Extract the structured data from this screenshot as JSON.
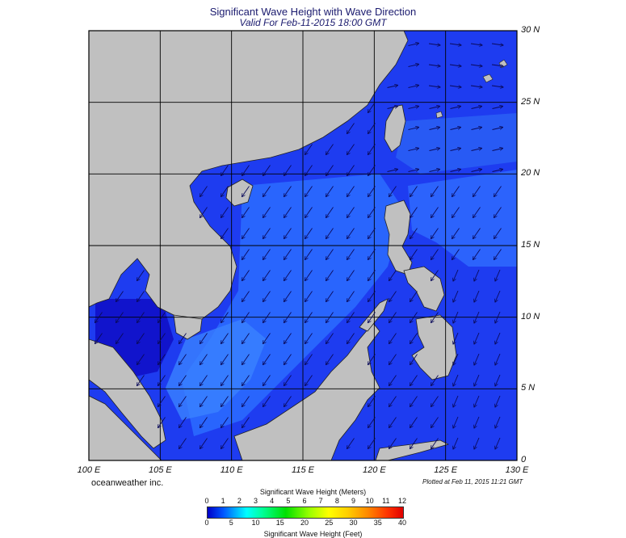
{
  "header": {
    "title": "Significant Wave Height with Wave Direction",
    "subtitle": "Valid For Feb-11-2015 18:00 GMT"
  },
  "map": {
    "lon_labels": [
      "100 E",
      "105 E",
      "110 E",
      "115 E",
      "120 E",
      "125 E",
      "130 E"
    ],
    "lat_labels": [
      "30 N",
      "25 N",
      "20 N",
      "15 N",
      "10 N",
      "5 N",
      "0"
    ],
    "lon_range": [
      100,
      130
    ],
    "lat_range": [
      0,
      30
    ],
    "land_color": "#c0c0c0",
    "sea_color_low": "#1414e6",
    "sea_color_mid": "#2a5cff",
    "sea_color_high": "#3c8cff",
    "arrow_color": "#0a0a5a",
    "wave_direction": "from north-east, arrows pointing south-west"
  },
  "footer": {
    "credit": "oceanweather inc.",
    "plotted": "Plotted at Feb 11, 2015 11:21 GMT"
  },
  "colorbar": {
    "title_meters": "Significant Wave Height (Meters)",
    "title_feet": "Significant Wave Height (Feet)",
    "meter_ticks": [
      "0",
      "1",
      "2",
      "3",
      "4",
      "5",
      "6",
      "7",
      "8",
      "9",
      "10",
      "11",
      "12"
    ],
    "feet_ticks": [
      "0",
      "5",
      "10",
      "15",
      "20",
      "25",
      "30",
      "35",
      "40"
    ]
  }
}
